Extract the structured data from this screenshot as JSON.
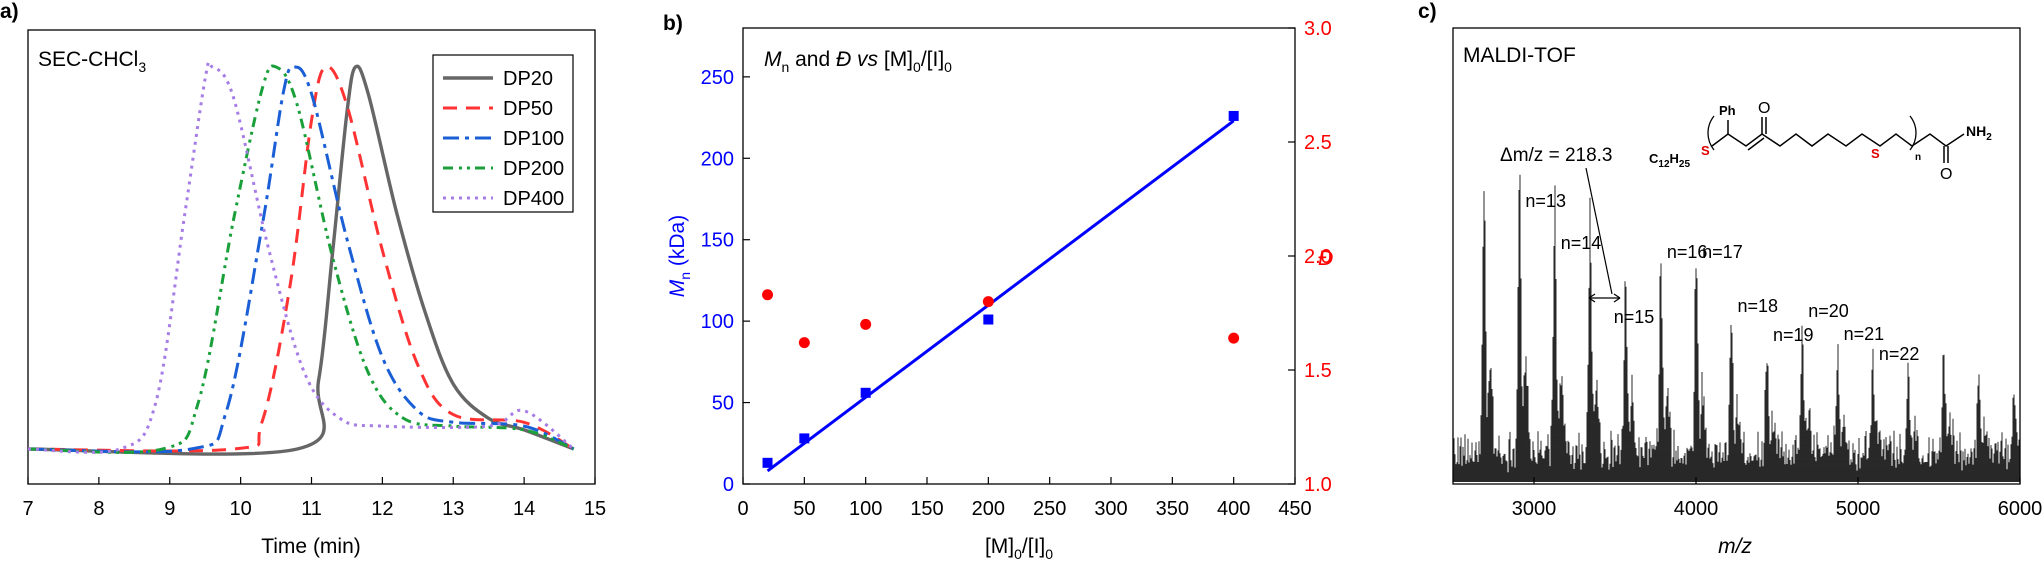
{
  "chart_data": [
    {
      "panel": "a)",
      "type": "line",
      "annotation": "SEC-CHCl",
      "annotation_sub": "3",
      "xlabel": "Time (min)",
      "xlim": [
        7,
        15
      ],
      "xticks": [
        "7",
        "8",
        "9",
        "10",
        "11",
        "12",
        "13",
        "14",
        "15"
      ],
      "legend_position": "top-right",
      "series": [
        {
          "name": "DP20",
          "color": "#666666",
          "dash": "solid",
          "peak": 11.62,
          "width_left": 0.36,
          "width_right": 0.62,
          "tail": 0.01,
          "x": [
            7.0,
            10.8,
            11.1,
            11.3,
            11.5,
            11.62,
            11.8,
            12.2,
            12.6,
            13.0,
            13.5,
            14.0,
            14.7
          ],
          "y": [
            0.0,
            0.0,
            0.18,
            0.52,
            0.88,
            1.0,
            0.93,
            0.62,
            0.36,
            0.17,
            0.08,
            0.05,
            0.0
          ]
        },
        {
          "name": "DP50",
          "color": "#ff3333",
          "dash": "14,9",
          "peak": 11.2,
          "width_left": 0.4,
          "width_right": 0.66,
          "tail": 0.07,
          "x": [
            7.0,
            9.9,
            10.3,
            10.7,
            11.0,
            11.2,
            11.5,
            12.0,
            12.5,
            13.0,
            14.0,
            14.7
          ],
          "y": [
            0.0,
            0.0,
            0.07,
            0.43,
            0.86,
            1.0,
            0.9,
            0.52,
            0.22,
            0.09,
            0.07,
            0.0
          ]
        },
        {
          "name": "DP100",
          "color": "#1a5fd6",
          "dash": "16,6,4,6",
          "peak": 10.75,
          "width_left": 0.42,
          "width_right": 0.68,
          "tail": 0.07,
          "x": [
            7.0,
            9.3,
            9.8,
            10.3,
            10.6,
            10.75,
            11.0,
            11.5,
            12.0,
            12.5,
            13.0,
            14.0,
            14.7
          ],
          "y": [
            0.0,
            0.0,
            0.1,
            0.58,
            0.93,
            1.0,
            0.93,
            0.55,
            0.24,
            0.1,
            0.07,
            0.06,
            0.0
          ]
        },
        {
          "name": "DP200",
          "color": "#1aa03a",
          "dash": "10,6,3,5,3,5",
          "peak": 10.5,
          "width_left": 0.42,
          "width_right": 0.64,
          "tail": 0.06,
          "x": [
            7.0,
            8.9,
            9.4,
            9.9,
            10.3,
            10.5,
            10.8,
            11.3,
            11.8,
            12.3,
            13.0,
            14.0,
            14.7
          ],
          "y": [
            0.0,
            0.0,
            0.12,
            0.6,
            0.94,
            1.0,
            0.9,
            0.5,
            0.2,
            0.08,
            0.06,
            0.05,
            0.0
          ]
        },
        {
          "name": "DP400",
          "color": "#a67ce6",
          "dash": "3,5",
          "peak": 9.6,
          "width_left": 0.4,
          "width_right": 0.56,
          "tail": 0.08,
          "x": [
            7.0,
            8.3,
            8.8,
            9.2,
            9.5,
            9.6,
            9.9,
            10.4,
            10.9,
            11.4,
            12.0,
            13.5,
            14.0,
            14.7
          ],
          "y": [
            0.0,
            0.0,
            0.12,
            0.6,
            0.97,
            1.0,
            0.92,
            0.52,
            0.2,
            0.08,
            0.06,
            0.06,
            0.1,
            0.0
          ]
        }
      ]
    },
    {
      "panel": "b)",
      "type": "scatter",
      "title": "M_n and Đ vs [M]0/[I]0",
      "title_parts": {
        "m": "M",
        "n": "n",
        "and": " and ",
        "d": "Đ",
        "vs": " vs ",
        "m0": "[M]",
        "sub0a": "0",
        "slash": "/[I]",
        "sub0b": "0"
      },
      "xlabel": "[M]0/[I]0",
      "xlabel_parts": {
        "m": "[M]",
        "sub0a": "0",
        "slash": "/[I]",
        "sub0b": "0"
      },
      "xlim": [
        0,
        450
      ],
      "xticks": [
        "0",
        "50",
        "100",
        "150",
        "200",
        "250",
        "300",
        "350",
        "400",
        "450"
      ],
      "ylabel_left": "Mn (kDa)",
      "ylabel_left_parts": {
        "m": "M",
        "n": "n",
        "rest": " (kDa)"
      },
      "ylim_left": [
        0,
        280
      ],
      "yticks_left": [
        "0",
        "50",
        "100",
        "150",
        "200",
        "250"
      ],
      "ylabel_right": "Đ",
      "ylim_right": [
        1.0,
        3.0
      ],
      "yticks_right": [
        "1.0",
        "1.5",
        "2.0",
        "2.5",
        "3.0"
      ],
      "left_color": "#0000ff",
      "right_color": "#ff0000",
      "series": [
        {
          "name": "Mn",
          "axis": "left",
          "marker": "square",
          "color": "#0000ff",
          "x": [
            20,
            50,
            100,
            200,
            400
          ],
          "y": [
            13,
            28,
            56,
            101,
            226
          ]
        },
        {
          "name": "Đ",
          "axis": "right",
          "marker": "circle",
          "color": "#ff0000",
          "x": [
            20,
            50,
            100,
            200,
            400
          ],
          "y": [
            1.83,
            1.62,
            1.7,
            1.8,
            1.64
          ]
        }
      ],
      "fit_line": {
        "x": [
          20,
          400
        ],
        "y": [
          8,
          223
        ],
        "color": "#0000ff"
      }
    },
    {
      "panel": "c)",
      "type": "line",
      "annotation": "MALDI-TOF",
      "xlabel": "m/z",
      "xlim": [
        2500,
        6000
      ],
      "xticks": [
        "3000",
        "4000",
        "5000",
        "6000"
      ],
      "delta_label": "Δm/z = 218.3",
      "structure": {
        "ph": "Ph",
        "o": "O",
        "s1": "S",
        "s2": "S",
        "n": "n",
        "nh2": "NH",
        "nh2_sub": "2",
        "c": "C",
        "c_sub": "12",
        "h": "H",
        "h_sub": "25"
      },
      "peaks": {
        "x": [
          2692,
          2910,
          3128,
          3346,
          3565,
          3783,
          4001,
          4219,
          4438,
          4656,
          4874,
          5092,
          5310,
          5529,
          5747,
          5965
        ],
        "y": [
          0.86,
          0.92,
          0.82,
          0.76,
          0.56,
          0.62,
          0.66,
          0.43,
          0.34,
          0.4,
          0.32,
          0.28,
          0.3,
          0.32,
          0.26,
          0.2
        ]
      },
      "labels": [
        {
          "text": "n=13",
          "x": 2910
        },
        {
          "text": "n=14",
          "x": 3128
        },
        {
          "text": "n=15",
          "x": 3455
        },
        {
          "text": "n=16",
          "x": 3783
        },
        {
          "text": "n=17",
          "x": 4001
        },
        {
          "text": "n=18",
          "x": 4219
        },
        {
          "text": "n=19",
          "x": 4438
        },
        {
          "text": "n=20",
          "x": 4656
        },
        {
          "text": "n=21",
          "x": 4874
        },
        {
          "text": "n=22",
          "x": 5092
        }
      ]
    }
  ]
}
